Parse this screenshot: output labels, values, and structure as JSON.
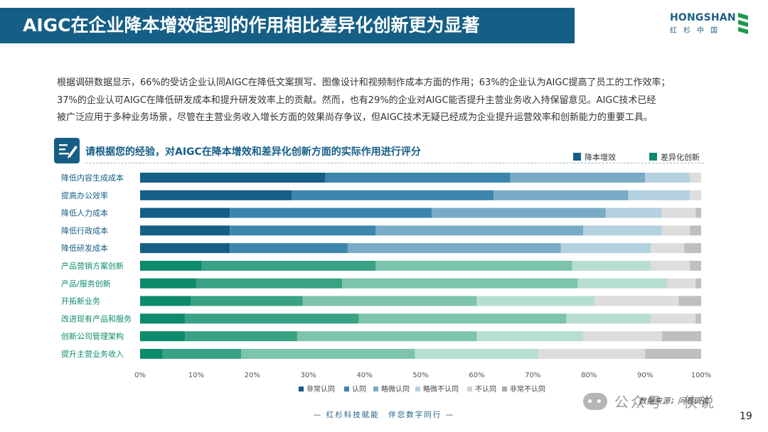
{
  "header": {
    "title": "AIGC在企业降本增效起到的作用相比差异化创新更为显著",
    "logo_text": "HONGSHAN",
    "logo_sub": "红杉中国"
  },
  "intro": {
    "lines": [
      "根据调研数据显示，66%的受访企业认同AIGC在降低文案撰写、图像设计和视频制作成本方面的作用；63%的企业认为AIGC提高了员工的工作效率；",
      "37%的企业认可AIGC在降低研发成本和提升研发效率上的贡献。然而，也有29%的企业对AIGC能否提升主营业务收入持保留意见。AIGC技术已经",
      "被广泛应用于多种业务场景，尽管在主营业务收入增长方面的效果尚存争议，但AIGC技术无疑已经成为企业提升运营效率和创新能力的重要工具。"
    ]
  },
  "question": {
    "icon": "survey-edit-icon",
    "text": "请根据您的经验，对AIGC在降本增效和差异化创新方面的实际作用进行评分"
  },
  "chart_data": {
    "type": "bar",
    "orientation": "horizontal",
    "stacked": "percent",
    "groups_legend": [
      {
        "name": "降本增效",
        "color": "#155e86"
      },
      {
        "name": "差异化创新",
        "color": "#0e8a6c"
      }
    ],
    "categories": [
      "降低内容生成成本",
      "提高办公效率",
      "降低人力成本",
      "降低行政成本",
      "降低研发成本",
      "产品营销方案创新",
      "产品/服务创新",
      "开拓新业务",
      "改进现有产品和服务",
      "创新公司管理架构",
      "提升主营业务收入"
    ],
    "category_group": [
      "降本增效",
      "降本增效",
      "降本增效",
      "降本增效",
      "降本增效",
      "差异化创新",
      "差异化创新",
      "差异化创新",
      "差异化创新",
      "差异化创新",
      "差异化创新"
    ],
    "series": [
      {
        "name": "非常认同",
        "values": [
          33,
          27,
          16,
          16,
          16,
          11,
          10,
          9,
          8,
          8,
          4
        ]
      },
      {
        "name": "认同",
        "values": [
          33,
          36,
          36,
          26,
          21,
          31,
          26,
          20,
          31,
          20,
          14
        ]
      },
      {
        "name": "略微认同",
        "values": [
          24,
          24,
          31,
          37,
          38,
          35,
          42,
          31,
          37,
          32,
          31
        ]
      },
      {
        "name": "略微不认同",
        "values": [
          8,
          11,
          10,
          14,
          16,
          14,
          16,
          21,
          15,
          19,
          22
        ]
      },
      {
        "name": "不认同",
        "values": [
          2,
          2,
          6,
          5,
          6,
          7,
          5,
          15,
          8,
          14,
          19
        ]
      },
      {
        "name": "非常不认同",
        "values": [
          0,
          0,
          1,
          2,
          3,
          2,
          1,
          4,
          1,
          7,
          10
        ]
      }
    ],
    "shades": {
      "降本增效": [
        "#155e86",
        "#3c86ad",
        "#79abc6",
        "#b4d1e0",
        "#dddddd",
        "#bfbfbf"
      ],
      "差异化创新": [
        "#0e8a6c",
        "#38a285",
        "#7cc4ac",
        "#b6dfd1",
        "#dddddd",
        "#bfbfbf"
      ]
    },
    "legend_colors": [
      "#155e86",
      "#3c86ad",
      "#79abc6",
      "#b4d1e0",
      "#d2d2d2",
      "#a9a9a9"
    ],
    "x_ticks": [
      "0%",
      "10%",
      "20%",
      "30%",
      "40%",
      "50%",
      "60%",
      "70%",
      "80%",
      "90%",
      "100%"
    ],
    "xlim": [
      0,
      100
    ],
    "grid": false,
    "legend_position": "bottom",
    "group_legend_position": "top-right"
  },
  "footer": {
    "tagline": "— 红杉科技赋能　伴您数字同行 —",
    "source": "数据来源：问卷调查",
    "watermark": "公众号 · 侠说",
    "page": "19"
  }
}
